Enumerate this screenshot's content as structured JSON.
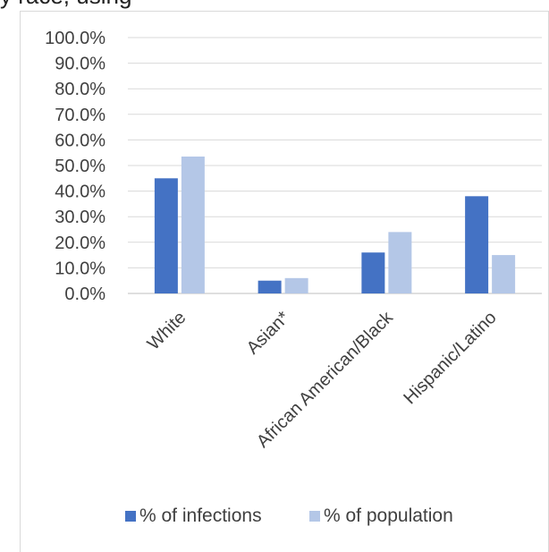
{
  "header_fragment": "y race, using",
  "chart_data": {
    "type": "bar",
    "categories": [
      "White",
      "Asian*",
      "African American/Black",
      "Hispanic/Latino"
    ],
    "series": [
      {
        "name": "% of infections",
        "values": [
          45.0,
          5.0,
          16.0,
          38.0
        ],
        "color": "#4472c4"
      },
      {
        "name": "% of population",
        "values": [
          53.5,
          6.0,
          24.0,
          15.0
        ],
        "color": "#b4c7e7"
      }
    ],
    "y_ticks": [
      "0.0%",
      "10.0%",
      "20.0%",
      "30.0%",
      "40.0%",
      "50.0%",
      "60.0%",
      "70.0%",
      "80.0%",
      "90.0%",
      "100.0%"
    ],
    "ylim": [
      0,
      100
    ],
    "grid": true,
    "legend_position": "bottom"
  }
}
